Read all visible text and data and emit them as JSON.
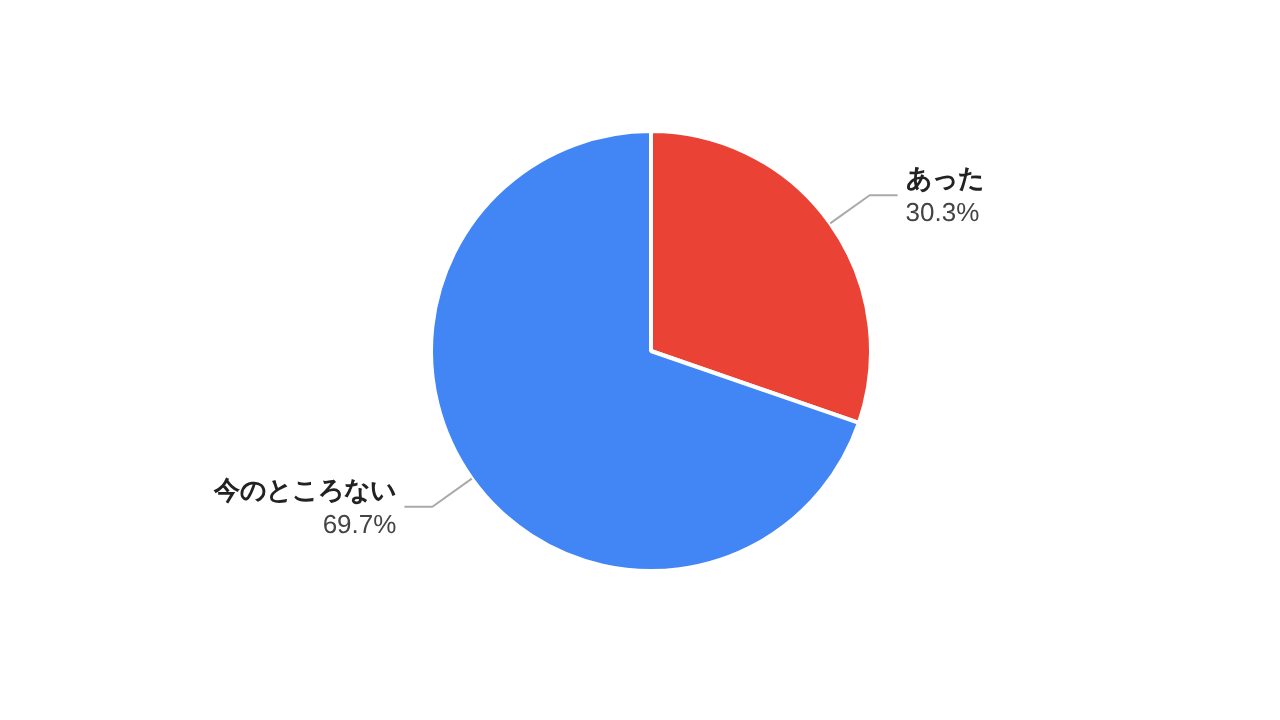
{
  "chart_data": {
    "type": "pie",
    "categories": [
      "あった",
      "今のところない"
    ],
    "values": [
      30.3,
      69.7
    ],
    "colors": [
      "#ea4335",
      "#4285f4"
    ],
    "value_labels": [
      "30.3%",
      "69.7%"
    ]
  }
}
